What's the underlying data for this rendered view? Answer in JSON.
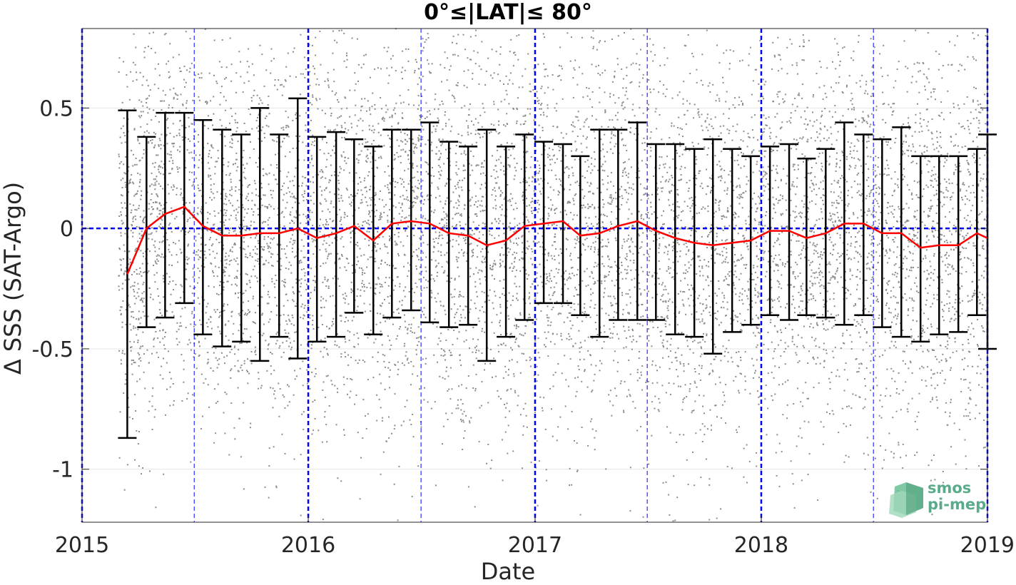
{
  "chart_data": {
    "type": "scatter",
    "title": "0°≤|LAT|≤ 80°",
    "xlabel": "Date",
    "ylabel": "Δ SSS (SAT-Argo)",
    "xlim": [
      "2015-01-01",
      "2019-01-01"
    ],
    "ylim": [
      -1.22,
      0.83
    ],
    "xticks": [
      "2015",
      "2016",
      "2017",
      "2018",
      "2019"
    ],
    "yticks": [
      -1,
      -0.5,
      0,
      0.5
    ],
    "ytick_labels": [
      "-1",
      "-0.5",
      "0",
      "0.5"
    ],
    "grid": true,
    "zero_line": 0,
    "year_lines": [
      "2015-01-01",
      "2016-01-01",
      "2017-01-01",
      "2018-01-01",
      "2019-01-01"
    ],
    "half_year_lines": [
      "2015-07-01",
      "2016-07-01",
      "2017-07-01",
      "2018-07-01"
    ],
    "scatter_x_range": [
      "2015-03-01",
      "2019-01-01"
    ],
    "series": [
      {
        "kind": "mean_with_std_errorbars",
        "color": "#ff0000",
        "points": [
          {
            "date": "2015-03-15",
            "mean": -0.19,
            "low": -0.87,
            "high": 0.49
          },
          {
            "date": "2015-04-15",
            "mean": 0.0,
            "low": -0.41,
            "high": 0.38
          },
          {
            "date": "2015-05-15",
            "mean": 0.06,
            "low": -0.37,
            "high": 0.48
          },
          {
            "date": "2015-06-15",
            "mean": 0.09,
            "low": -0.31,
            "high": 0.48
          },
          {
            "date": "2015-07-15",
            "mean": 0.01,
            "low": -0.44,
            "high": 0.45
          },
          {
            "date": "2015-08-15",
            "mean": -0.03,
            "low": -0.49,
            "high": 0.41
          },
          {
            "date": "2015-09-15",
            "mean": -0.03,
            "low": -0.47,
            "high": 0.39
          },
          {
            "date": "2015-10-15",
            "mean": -0.02,
            "low": -0.55,
            "high": 0.5
          },
          {
            "date": "2015-11-15",
            "mean": -0.02,
            "low": -0.45,
            "high": 0.39
          },
          {
            "date": "2015-12-15",
            "mean": 0.0,
            "low": -0.54,
            "high": 0.54
          },
          {
            "date": "2016-01-15",
            "mean": -0.04,
            "low": -0.47,
            "high": 0.38
          },
          {
            "date": "2016-02-15",
            "mean": -0.02,
            "low": -0.45,
            "high": 0.4
          },
          {
            "date": "2016-03-15",
            "mean": 0.01,
            "low": -0.35,
            "high": 0.37
          },
          {
            "date": "2016-04-15",
            "mean": -0.05,
            "low": -0.44,
            "high": 0.34
          },
          {
            "date": "2016-05-15",
            "mean": 0.02,
            "low": -0.37,
            "high": 0.41
          },
          {
            "date": "2016-06-15",
            "mean": 0.03,
            "low": -0.34,
            "high": 0.41
          },
          {
            "date": "2016-07-15",
            "mean": 0.02,
            "low": -0.39,
            "high": 0.44
          },
          {
            "date": "2016-08-15",
            "mean": -0.02,
            "low": -0.41,
            "high": 0.36
          },
          {
            "date": "2016-09-15",
            "mean": -0.03,
            "low": -0.4,
            "high": 0.34
          },
          {
            "date": "2016-10-15",
            "mean": -0.07,
            "low": -0.55,
            "high": 0.41
          },
          {
            "date": "2016-11-15",
            "mean": -0.05,
            "low": -0.45,
            "high": 0.34
          },
          {
            "date": "2016-12-15",
            "mean": 0.01,
            "low": -0.38,
            "high": 0.39
          },
          {
            "date": "2017-01-15",
            "mean": 0.02,
            "low": -0.31,
            "high": 0.36
          },
          {
            "date": "2017-02-15",
            "mean": 0.03,
            "low": -0.31,
            "high": 0.35
          },
          {
            "date": "2017-03-15",
            "mean": -0.03,
            "low": -0.36,
            "high": 0.3
          },
          {
            "date": "2017-04-15",
            "mean": -0.02,
            "low": -0.45,
            "high": 0.41
          },
          {
            "date": "2017-05-15",
            "mean": 0.01,
            "low": -0.38,
            "high": 0.41
          },
          {
            "date": "2017-06-15",
            "mean": 0.03,
            "low": -0.38,
            "high": 0.44
          },
          {
            "date": "2017-07-15",
            "mean": -0.01,
            "low": -0.38,
            "high": 0.35
          },
          {
            "date": "2017-08-15",
            "mean": -0.04,
            "low": -0.44,
            "high": 0.35
          },
          {
            "date": "2017-09-15",
            "mean": -0.06,
            "low": -0.45,
            "high": 0.33
          },
          {
            "date": "2017-10-15",
            "mean": -0.07,
            "low": -0.52,
            "high": 0.37
          },
          {
            "date": "2017-11-15",
            "mean": -0.06,
            "low": -0.43,
            "high": 0.33
          },
          {
            "date": "2017-12-15",
            "mean": -0.05,
            "low": -0.4,
            "high": 0.3
          },
          {
            "date": "2018-01-15",
            "mean": -0.01,
            "low": -0.36,
            "high": 0.34
          },
          {
            "date": "2018-02-15",
            "mean": -0.01,
            "low": -0.38,
            "high": 0.35
          },
          {
            "date": "2018-03-15",
            "mean": -0.04,
            "low": -0.36,
            "high": 0.29
          },
          {
            "date": "2018-04-15",
            "mean": -0.02,
            "low": -0.37,
            "high": 0.33
          },
          {
            "date": "2018-05-15",
            "mean": 0.02,
            "low": -0.4,
            "high": 0.44
          },
          {
            "date": "2018-06-15",
            "mean": 0.02,
            "low": -0.36,
            "high": 0.39
          },
          {
            "date": "2018-07-15",
            "mean": -0.02,
            "low": -0.41,
            "high": 0.37
          },
          {
            "date": "2018-08-15",
            "mean": -0.02,
            "low": -0.45,
            "high": 0.42
          },
          {
            "date": "2018-09-15",
            "mean": -0.08,
            "low": -0.47,
            "high": 0.3
          },
          {
            "date": "2018-10-15",
            "mean": -0.07,
            "low": -0.44,
            "high": 0.3
          },
          {
            "date": "2018-11-15",
            "mean": -0.07,
            "low": -0.43,
            "high": 0.3
          },
          {
            "date": "2018-12-15",
            "mean": -0.02,
            "low": -0.36,
            "high": 0.33
          },
          {
            "date": "2019-01-01",
            "mean": -0.04,
            "low": -0.5,
            "high": 0.39
          }
        ]
      }
    ],
    "colors": {
      "scatter": "#8c8c8c",
      "mean_line": "#ff0000",
      "errorbar": "#000000",
      "reference_lines": "#0000ff",
      "grid": "#e6e6e6"
    }
  },
  "logo": {
    "line1": "smos",
    "line2": "pi-mep",
    "color": "#5aab8a"
  }
}
